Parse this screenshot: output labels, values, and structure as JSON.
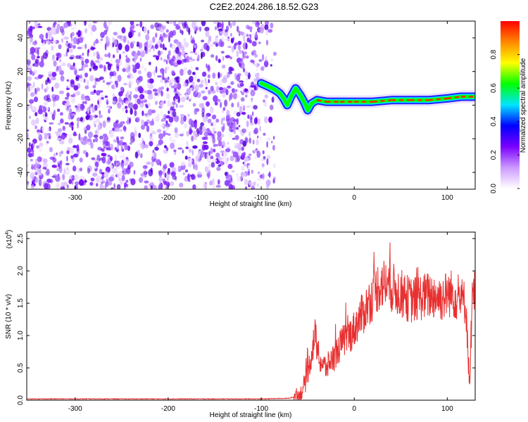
{
  "title": "C2E2.2024.286.18.52.G23",
  "chart_data": [
    {
      "type": "heatmap",
      "xlabel": "Height of straight line (km)",
      "ylabel": "Frequency (Hz)",
      "xlim": [
        -352,
        130
      ],
      "ylim": [
        -50,
        50
      ],
      "x_ticks": [
        -300,
        -200,
        -100,
        0,
        100
      ],
      "y_ticks": [
        -40,
        -20,
        0,
        20,
        40
      ],
      "colorbar": {
        "label": "Normalized spectral amplitude",
        "range": [
          0,
          1
        ],
        "ticks": [
          "0.0",
          "0.2",
          "0.4",
          "0.6",
          "0.8"
        ],
        "colors": [
          "#ffffff",
          "#cc99ff",
          "#7a00ff",
          "#0000ff",
          "#00e5ff",
          "#00ff00",
          "#ffff00",
          "#ff8800",
          "#ff0000"
        ]
      },
      "noise_region_x": [
        -352,
        -85
      ],
      "ridge": [
        {
          "x": -100,
          "y": 13
        },
        {
          "x": -92,
          "y": 11
        },
        {
          "x": -85,
          "y": 9
        },
        {
          "x": -80,
          "y": 7
        },
        {
          "x": -76,
          "y": 4
        },
        {
          "x": -72,
          "y": 0
        },
        {
          "x": -68,
          "y": 5
        },
        {
          "x": -63,
          "y": 10
        },
        {
          "x": -58,
          "y": 6
        },
        {
          "x": -54,
          "y": 2
        },
        {
          "x": -50,
          "y": -3
        },
        {
          "x": -46,
          "y": 1
        },
        {
          "x": -40,
          "y": 3
        },
        {
          "x": -30,
          "y": 2
        },
        {
          "x": -15,
          "y": 2
        },
        {
          "x": 0,
          "y": 2
        },
        {
          "x": 20,
          "y": 2
        },
        {
          "x": 40,
          "y": 3
        },
        {
          "x": 60,
          "y": 3
        },
        {
          "x": 80,
          "y": 3
        },
        {
          "x": 100,
          "y": 4
        },
        {
          "x": 115,
          "y": 5
        },
        {
          "x": 130,
          "y": 5
        }
      ]
    },
    {
      "type": "line",
      "xlabel": "Height of straight line (km)",
      "ylabel": "SNR (10 * v/v)",
      "scale_note": "(x10",
      "scale_exp": "4",
      "scale_close": ")",
      "xlim": [
        -352,
        130
      ],
      "ylim": [
        0,
        2.6
      ],
      "x_ticks": [
        -300,
        -200,
        -100,
        0,
        100
      ],
      "y_ticks": [
        "0.0",
        "0.5",
        "1.0",
        "1.5",
        "2.0",
        "2.5"
      ],
      "color": "#e83030",
      "series": [
        {
          "points": [
            {
              "x": -352,
              "y": 0.02
            },
            {
              "x": -300,
              "y": 0.02
            },
            {
              "x": -200,
              "y": 0.02
            },
            {
              "x": -100,
              "y": 0.02
            },
            {
              "x": -70,
              "y": 0.03
            },
            {
              "x": -58,
              "y": 0.08
            },
            {
              "x": -52,
              "y": 0.3
            },
            {
              "x": -48,
              "y": 0.55
            },
            {
              "x": -45,
              "y": 0.8
            },
            {
              "x": -42,
              "y": 1.0
            },
            {
              "x": -38,
              "y": 0.65
            },
            {
              "x": -34,
              "y": 0.55
            },
            {
              "x": -30,
              "y": 0.5
            },
            {
              "x": -25,
              "y": 0.62
            },
            {
              "x": -20,
              "y": 0.7
            },
            {
              "x": -15,
              "y": 0.85
            },
            {
              "x": -10,
              "y": 0.95
            },
            {
              "x": -5,
              "y": 1.0
            },
            {
              "x": 0,
              "y": 1.1
            },
            {
              "x": 5,
              "y": 1.25
            },
            {
              "x": 10,
              "y": 1.35
            },
            {
              "x": 15,
              "y": 1.5
            },
            {
              "x": 20,
              "y": 1.6
            },
            {
              "x": 25,
              "y": 1.75
            },
            {
              "x": 30,
              "y": 1.8
            },
            {
              "x": 35,
              "y": 1.8
            },
            {
              "x": 40,
              "y": 1.75
            },
            {
              "x": 45,
              "y": 1.7
            },
            {
              "x": 50,
              "y": 1.65
            },
            {
              "x": 55,
              "y": 1.6
            },
            {
              "x": 60,
              "y": 1.55
            },
            {
              "x": 65,
              "y": 1.55
            },
            {
              "x": 70,
              "y": 1.6
            },
            {
              "x": 75,
              "y": 1.6
            },
            {
              "x": 80,
              "y": 1.62
            },
            {
              "x": 85,
              "y": 1.62
            },
            {
              "x": 90,
              "y": 1.6
            },
            {
              "x": 95,
              "y": 1.58
            },
            {
              "x": 100,
              "y": 1.65
            },
            {
              "x": 105,
              "y": 1.65
            },
            {
              "x": 110,
              "y": 1.6
            },
            {
              "x": 115,
              "y": 1.55
            },
            {
              "x": 120,
              "y": 1.5
            },
            {
              "x": 124,
              "y": 0.2
            },
            {
              "x": 127,
              "y": 1.6
            },
            {
              "x": 130,
              "y": 1.7
            }
          ]
        }
      ]
    }
  ]
}
